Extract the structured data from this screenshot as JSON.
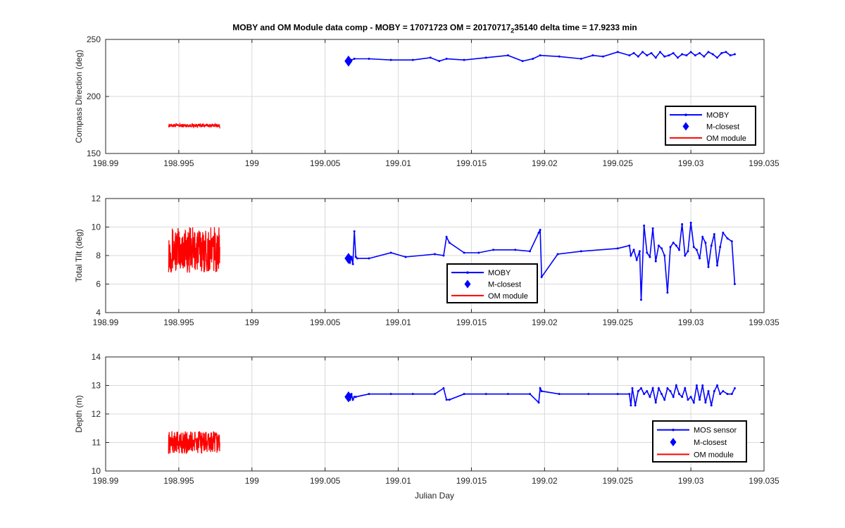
{
  "figure": {
    "title_prefix": "MOBY and OM Module data comp - MOBY = 17071723 OM = 20170717",
    "title_subscript": "2",
    "title_suffix": "35140 delta time = 17.9233 min",
    "xlabel": "Julian Day"
  },
  "colors": {
    "moby": "#0000ff",
    "om": "#ff0000",
    "grid": "#d9d9d9",
    "axes": "#262626"
  },
  "chart_data": [
    {
      "type": "line",
      "ylabel": "Compass Direction (deg)",
      "xlabel": "",
      "xlim": [
        198.99,
        199.035
      ],
      "ylim": [
        150,
        250
      ],
      "xticks": [
        "198.99",
        "198.995",
        "199",
        "199.005",
        "199.01",
        "199.015",
        "199.02",
        "199.025",
        "199.03",
        "199.035"
      ],
      "yticks": [
        "150",
        "200",
        "250"
      ],
      "grid": true,
      "legend": {
        "placement": "bottom-right",
        "entries": [
          "MOBY",
          "M-closest",
          "OM module"
        ]
      },
      "series": [
        {
          "name": "MOBY",
          "color": "#0000ff",
          "style": "line-dots",
          "x": [
            199.0066,
            199.0068,
            199.007,
            199.008,
            199.0095,
            199.011,
            199.0122,
            199.0128,
            199.0133,
            199.0145,
            199.016,
            199.0175,
            199.0185,
            199.0192,
            199.0197,
            199.021,
            199.0225,
            199.0233,
            199.024,
            199.025,
            199.0258,
            199.0261,
            199.0264,
            199.0267,
            199.027,
            199.0273,
            199.0276,
            199.0279,
            199.0282,
            199.0285,
            199.0288,
            199.0291,
            199.0294,
            199.0297,
            199.03,
            199.0303,
            199.0306,
            199.0309,
            199.0312,
            199.0315,
            199.0318,
            199.0321,
            199.0324,
            199.0327,
            199.033
          ],
          "y": [
            231,
            232,
            233,
            233,
            232,
            232,
            234,
            231,
            233,
            232,
            234,
            236,
            231,
            233,
            236,
            235,
            233,
            236,
            235,
            239,
            236,
            238,
            235,
            239,
            236,
            238,
            234,
            239,
            235,
            236,
            238,
            234,
            237,
            236,
            239,
            236,
            238,
            235,
            239,
            237,
            234,
            238,
            239,
            236,
            237
          ]
        },
        {
          "name": "M-closest",
          "color": "#0000ff",
          "style": "diamond",
          "x": [
            199.0066
          ],
          "y": [
            231
          ]
        },
        {
          "name": "OM module",
          "color": "#ff0000",
          "style": "noise",
          "x_range": [
            198.9943,
            198.9978
          ],
          "y_center": 174.5,
          "y_spread": 1.5,
          "y_end": 172
        }
      ]
    },
    {
      "type": "line",
      "ylabel": "Total Tilt (deg)",
      "xlabel": "",
      "xlim": [
        198.99,
        199.035
      ],
      "ylim": [
        4,
        12
      ],
      "xticks": [
        "198.99",
        "198.995",
        "199",
        "199.005",
        "199.01",
        "199.015",
        "199.02",
        "199.025",
        "199.03",
        "199.035"
      ],
      "yticks": [
        "4",
        "6",
        "8",
        "10",
        "12"
      ],
      "grid": true,
      "legend": {
        "placement": "bottom-center",
        "entries": [
          "MOBY",
          "M-closest",
          "OM module"
        ]
      },
      "series": [
        {
          "name": "MOBY",
          "color": "#0000ff",
          "style": "line-dots",
          "x": [
            199.0066,
            199.0067,
            199.0068,
            199.0069,
            199.007,
            199.0071,
            199.0072,
            199.008,
            199.0095,
            199.0105,
            199.0125,
            199.0131,
            199.0133,
            199.0135,
            199.0145,
            199.0155,
            199.0165,
            199.018,
            199.019,
            199.0196,
            199.0197,
            199.0198,
            199.0209,
            199.0225,
            199.025,
            199.0258,
            199.0259,
            199.0261,
            199.0263,
            199.0265,
            199.0266,
            199.0268,
            199.027,
            199.0272,
            199.0274,
            199.0276,
            199.0278,
            199.028,
            199.0282,
            199.0284,
            199.0286,
            199.0288,
            199.029,
            199.0292,
            199.0294,
            199.0296,
            199.0298,
            199.03,
            199.0302,
            199.0304,
            199.0306,
            199.0308,
            199.031,
            199.0312,
            199.0314,
            199.0316,
            199.0318,
            199.032,
            199.0322,
            199.0325,
            199.0328,
            199.033
          ],
          "y": [
            7.8,
            7.5,
            7.9,
            7.4,
            9.7,
            7.9,
            7.8,
            7.8,
            8.2,
            7.9,
            8.1,
            8.0,
            9.3,
            8.9,
            8.2,
            8.2,
            8.4,
            8.4,
            8.3,
            9.6,
            9.8,
            6.5,
            8.1,
            8.3,
            8.5,
            8.7,
            8.0,
            8.4,
            7.7,
            8.3,
            4.9,
            10.1,
            8.2,
            7.9,
            9.9,
            7.6,
            8.7,
            8.5,
            8.0,
            5.4,
            8.6,
            8.9,
            8.7,
            8.4,
            10.2,
            8.0,
            8.3,
            10.3,
            8.6,
            8.4,
            7.8,
            9.3,
            8.9,
            7.2,
            8.7,
            9.5,
            7.3,
            8.6,
            9.6,
            9.2,
            9.0,
            6.0
          ]
        },
        {
          "name": "M-closest",
          "color": "#0000ff",
          "style": "diamond",
          "x": [
            199.0066
          ],
          "y": [
            7.8
          ]
        },
        {
          "name": "OM module",
          "color": "#ff0000",
          "style": "noise",
          "x_range": [
            198.9943,
            198.9978
          ],
          "y_center": 8.4,
          "y_spread": 1.6,
          "y_end": 8.6
        }
      ]
    },
    {
      "type": "line",
      "ylabel": "Depth (m)",
      "xlabel": "Julian Day",
      "xlim": [
        198.99,
        199.035
      ],
      "ylim": [
        10,
        14
      ],
      "xticks": [
        "198.99",
        "198.995",
        "199",
        "199.005",
        "199.01",
        "199.015",
        "199.02",
        "199.025",
        "199.03",
        "199.035"
      ],
      "yticks": [
        "10",
        "11",
        "12",
        "13",
        "14"
      ],
      "grid": true,
      "legend": {
        "placement": "bottom-right",
        "entries": [
          "MOS sensor",
          "M-closest",
          "OM module"
        ]
      },
      "series": [
        {
          "name": "MOS sensor",
          "color": "#0000ff",
          "style": "line-dots",
          "x": [
            199.0066,
            199.0067,
            199.0068,
            199.0069,
            199.007,
            199.0071,
            199.008,
            199.0095,
            199.011,
            199.0125,
            199.0131,
            199.0133,
            199.0135,
            199.0145,
            199.016,
            199.0175,
            199.019,
            199.0196,
            199.0197,
            199.0198,
            199.021,
            199.023,
            199.025,
            199.0258,
            199.0259,
            199.026,
            199.0262,
            199.0264,
            199.0266,
            199.0268,
            199.027,
            199.0272,
            199.0274,
            199.0276,
            199.0278,
            199.028,
            199.0282,
            199.0284,
            199.0286,
            199.0288,
            199.029,
            199.0292,
            199.0294,
            199.0296,
            199.0298,
            199.03,
            199.0302,
            199.0304,
            199.0306,
            199.0308,
            199.031,
            199.0312,
            199.0314,
            199.0316,
            199.0318,
            199.032,
            199.0322,
            199.0325,
            199.0328,
            199.033
          ],
          "y": [
            12.6,
            12.5,
            12.7,
            12.5,
            12.6,
            12.6,
            12.7,
            12.7,
            12.7,
            12.7,
            12.9,
            12.5,
            12.5,
            12.7,
            12.7,
            12.7,
            12.7,
            12.4,
            12.9,
            12.8,
            12.7,
            12.7,
            12.7,
            12.7,
            12.3,
            12.9,
            12.3,
            12.8,
            12.9,
            12.7,
            12.8,
            12.6,
            12.9,
            12.4,
            12.9,
            12.7,
            12.5,
            12.9,
            12.8,
            12.6,
            13.0,
            12.7,
            12.6,
            12.9,
            12.5,
            12.6,
            12.4,
            13.0,
            12.5,
            13.0,
            12.4,
            12.8,
            12.3,
            12.8,
            13.0,
            12.7,
            12.8,
            12.7,
            12.7,
            12.9
          ]
        },
        {
          "name": "M-closest",
          "color": "#0000ff",
          "style": "diamond",
          "x": [
            199.0066
          ],
          "y": [
            12.6
          ]
        },
        {
          "name": "OM module",
          "color": "#ff0000",
          "style": "noise",
          "x_range": [
            198.9943,
            198.9978
          ],
          "y_center": 11.0,
          "y_spread": 0.4,
          "y_end": 11.0
        }
      ]
    }
  ]
}
